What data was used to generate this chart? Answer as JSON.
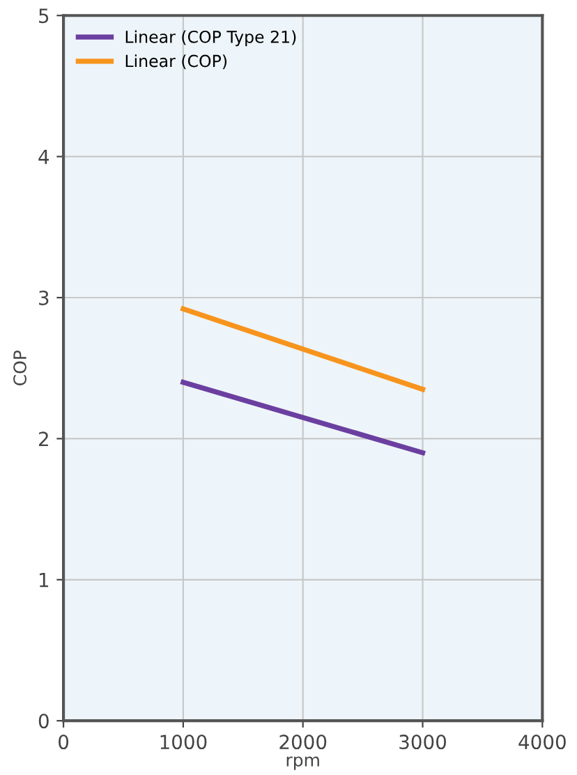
{
  "chart_data": {
    "type": "line",
    "xlabel": "rpm",
    "ylabel": "COP",
    "xlim": [
      0,
      4000
    ],
    "xticks": [
      0,
      1000,
      2000,
      3000,
      4000
    ],
    "ylim": [
      0,
      5
    ],
    "yticks": [
      0,
      1,
      2,
      3,
      4,
      5
    ],
    "grid": true,
    "legend": "top left",
    "marker": "none",
    "line_style": "solid",
    "x": [
      1000,
      3000
    ],
    "series": [
      {
        "name": "Linear (COP Type 21)",
        "color": "#6b3fa0",
        "values": [
          2.4,
          1.9
        ]
      },
      {
        "name": "Linear (COP)",
        "color": "#f7941d",
        "values": [
          2.92,
          2.35
        ]
      }
    ]
  }
}
